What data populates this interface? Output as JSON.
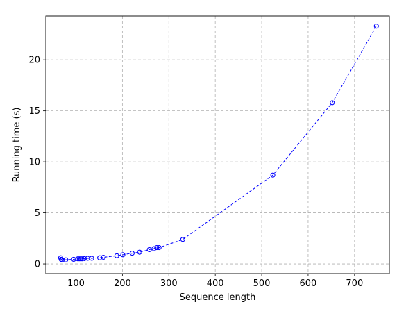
{
  "chart_data": {
    "type": "line",
    "title": "",
    "xlabel": "Sequence length",
    "ylabel": "Running time (s)",
    "xlim": [
      35,
      775
    ],
    "ylim": [
      -0.95,
      24.3
    ],
    "xticks": [
      100,
      200,
      300,
      400,
      500,
      600,
      700
    ],
    "yticks": [
      0,
      5,
      10,
      15,
      20
    ],
    "grid": true,
    "legend": "none",
    "colors": {
      "series": "#0000ff"
    },
    "series": [
      {
        "name": "",
        "marker": "circle",
        "linestyle": "dashed",
        "points": [
          [
            67,
            0.6
          ],
          [
            68,
            0.45
          ],
          [
            70,
            0.4
          ],
          [
            78,
            0.4
          ],
          [
            95,
            0.45
          ],
          [
            104,
            0.5
          ],
          [
            107,
            0.5
          ],
          [
            110,
            0.5
          ],
          [
            113,
            0.5
          ],
          [
            118,
            0.52
          ],
          [
            125,
            0.55
          ],
          [
            134,
            0.55
          ],
          [
            151,
            0.6
          ],
          [
            159,
            0.65
          ],
          [
            188,
            0.8
          ],
          [
            201,
            0.9
          ],
          [
            221,
            1.05
          ],
          [
            237,
            1.15
          ],
          [
            258,
            1.4
          ],
          [
            268,
            1.5
          ],
          [
            274,
            1.6
          ],
          [
            279,
            1.6
          ],
          [
            330,
            2.4
          ],
          [
            524,
            8.7
          ],
          [
            652,
            15.8
          ],
          [
            747,
            23.3
          ]
        ]
      }
    ]
  }
}
